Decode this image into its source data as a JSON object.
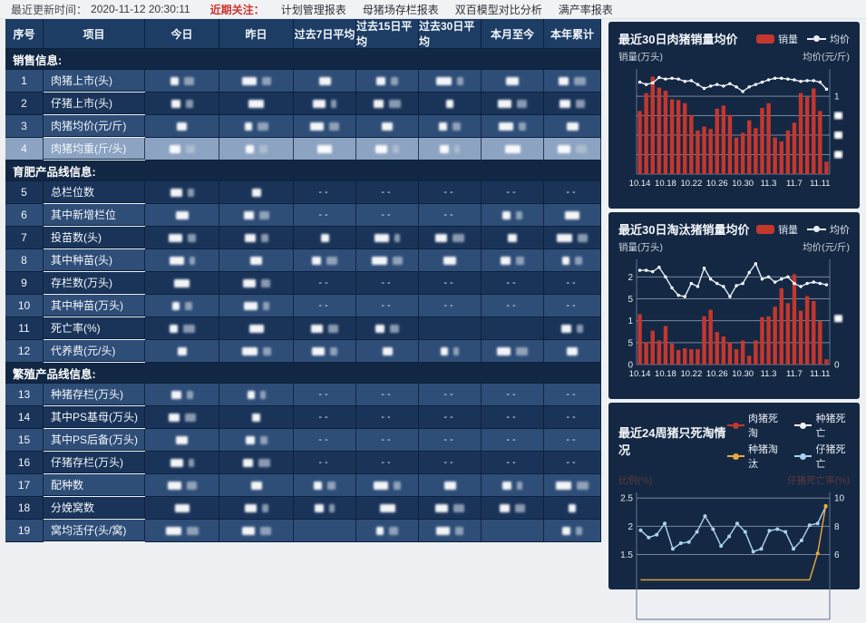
{
  "topbar": {
    "updated_label": "最近更新时间：",
    "updated_value": "2020-11-12 20:30:11",
    "focus_label": "近期关注：",
    "links": [
      "计划管理报表",
      "母猪场存栏报表",
      "双百模型对比分析",
      "满产率报表"
    ]
  },
  "table": {
    "headers": [
      "序号",
      "项目",
      "今日",
      "昨日",
      "过去7日平均",
      "过去15日平均",
      "过去30日平均",
      "本月至今",
      "本年累计"
    ],
    "redacted_note": "data cells blurred in source screenshot",
    "sections": [
      {
        "title": "销售信息:",
        "rows": [
          {
            "no": "1",
            "name": "肉猪上市(头)",
            "cells": [
              "R",
              "R",
              "R",
              "R",
              "R",
              "R",
              "R"
            ]
          },
          {
            "no": "2",
            "name": "仔猪上市(头)",
            "cells": [
              "R",
              "R",
              "R",
              "R",
              "R",
              "R",
              "R"
            ]
          },
          {
            "no": "3",
            "name": "肉猪均价(元/斤)",
            "cells": [
              "R",
              "R",
              "R",
              "R",
              "R",
              "R",
              "R"
            ]
          },
          {
            "no": "4",
            "name": "肉猪均重(斤/头)",
            "selected": true,
            "cells": [
              "R",
              "R",
              "R",
              "R",
              "R",
              "R",
              "R"
            ]
          }
        ]
      },
      {
        "title": "育肥产品线信息:",
        "rows": [
          {
            "no": "5",
            "name": "总栏位数",
            "cells": [
              "R",
              "R",
              "-",
              "-",
              "-",
              "-",
              "-"
            ]
          },
          {
            "no": "6",
            "name": "其中新增栏位",
            "cells": [
              "R",
              "R",
              "-",
              "-",
              "-",
              "R",
              "R"
            ]
          },
          {
            "no": "7",
            "name": "投苗数(头)",
            "cells": [
              "R",
              "R",
              "R",
              "R",
              "R",
              "R",
              "R"
            ]
          },
          {
            "no": "8",
            "name": "其中种苗(头)",
            "cells": [
              "R",
              "R",
              "R",
              "R",
              "R",
              "R",
              "R"
            ]
          },
          {
            "no": "9",
            "name": "存栏数(万头)",
            "cells": [
              "R",
              "R",
              "-",
              "-",
              "-",
              "-",
              "-"
            ]
          },
          {
            "no": "10",
            "name": "其中种苗(万头)",
            "cells": [
              "R",
              "R",
              "-",
              "-",
              "-",
              "-",
              "-"
            ]
          },
          {
            "no": "11",
            "name": "死亡率(%)",
            "cells": [
              "R",
              "R",
              "R",
              "R",
              "",
              "",
              "R"
            ]
          },
          {
            "no": "12",
            "name": "代养费(元/头)",
            "cells": [
              "R",
              "R",
              "R",
              "R",
              "R",
              "R",
              "R"
            ]
          }
        ]
      },
      {
        "title": "繁殖产品线信息:",
        "rows": [
          {
            "no": "13",
            "name": "种猪存栏(万头)",
            "cells": [
              "R",
              "R",
              "-",
              "-",
              "-",
              "-",
              "-"
            ]
          },
          {
            "no": "14",
            "name": "其中PS基母(万头)",
            "cells": [
              "R",
              "R",
              "-",
              "-",
              "-",
              "-",
              "-"
            ]
          },
          {
            "no": "15",
            "name": "其中PS后备(万头)",
            "cells": [
              "R",
              "R",
              "-",
              "-",
              "-",
              "-",
              "-"
            ]
          },
          {
            "no": "16",
            "name": "仔猪存栏(万头)",
            "cells": [
              "R",
              "R",
              "-",
              "-",
              "-",
              "-",
              "-"
            ]
          },
          {
            "no": "17",
            "name": "配种数",
            "cells": [
              "R",
              "R",
              "R",
              "R",
              "R",
              "R",
              "R"
            ]
          },
          {
            "no": "18",
            "name": "分娩窝数",
            "cells": [
              "R",
              "R",
              "R",
              "R",
              "R",
              "R",
              "R"
            ]
          },
          {
            "no": "19",
            "name": "窝均活仔(头/窝)",
            "cells": [
              "R",
              "R",
              "",
              "R",
              "R",
              "",
              "R"
            ]
          }
        ]
      }
    ]
  },
  "chart_data": [
    {
      "type": "bar+line",
      "title": "最近30日肉猪销量均价",
      "legend": [
        {
          "label": "销量",
          "kind": "bar",
          "color": "#c4372e"
        },
        {
          "label": "均价",
          "kind": "line",
          "color": "#e8f1fa"
        }
      ],
      "y_left_label": "销量(万头)",
      "y_right_label": "均价(元/斤)",
      "x_tick_labels": [
        "10.14",
        "10.18",
        "10.22",
        "10.26",
        "10.30",
        "11.3",
        "11.7",
        "11.11"
      ],
      "n_points": 30,
      "ylim": [
        0,
        1.35
      ],
      "grid_values": [
        0.25,
        0.5,
        0.75,
        1.0
      ],
      "left_ticks": [],
      "right_ticks": [
        {
          "v": 1.0,
          "t": "1"
        },
        {
          "v": 0.75,
          "redacted": true
        },
        {
          "v": 0.5,
          "redacted": true
        },
        {
          "v": 0.25,
          "redacted": true
        }
      ],
      "bar_series": {
        "name": "销量",
        "values": [
          0.81,
          1.04,
          1.25,
          1.11,
          1.07,
          0.96,
          0.95,
          0.91,
          0.76,
          0.56,
          0.61,
          0.58,
          0.84,
          0.88,
          0.76,
          0.47,
          0.53,
          0.69,
          0.59,
          0.85,
          0.91,
          0.47,
          0.42,
          0.56,
          0.66,
          1.04,
          0.99,
          1.1,
          0.81,
          0.16
        ],
        "note": "left axis labels not visible; values estimated on 0-1.35 relative scale"
      },
      "line_series": {
        "name": "均价",
        "values": [
          1.18,
          1.15,
          1.17,
          1.24,
          1.22,
          1.23,
          1.22,
          1.19,
          1.2,
          1.15,
          1.1,
          1.13,
          1.15,
          1.13,
          1.16,
          1.12,
          1.06,
          1.12,
          1.15,
          1.18,
          1.21,
          1.23,
          1.23,
          1.22,
          1.21,
          1.19,
          1.2,
          1.2,
          1.18,
          1.09
        ],
        "note": "right axis partially redacted"
      }
    },
    {
      "type": "bar+line",
      "title": "最近30日淘汰猪销量均价",
      "legend": [
        {
          "label": "销量",
          "kind": "bar",
          "color": "#c4372e"
        },
        {
          "label": "均价",
          "kind": "line",
          "color": "#e8f1fa"
        }
      ],
      "y_left_label": "销量(万头)",
      "y_right_label": "均价(元/斤)",
      "x_tick_labels": [
        "10.14",
        "10.18",
        "10.22",
        "10.26",
        "10.30",
        "11.3",
        "11.7",
        "11.11"
      ],
      "n_points": 30,
      "ylim": [
        0,
        2.4
      ],
      "grid_values": [
        0.5,
        1.0,
        1.5,
        2.0
      ],
      "left_ticks": [
        {
          "v": 2.0,
          "t": "2"
        },
        {
          "v": 1.5,
          "t": "5",
          "full": "1.5"
        },
        {
          "v": 1.0,
          "t": "1"
        },
        {
          "v": 0.5,
          "t": "5",
          "full": "0.5"
        },
        {
          "v": 0.0,
          "t": "0"
        }
      ],
      "right_ticks": [
        {
          "v": 1.05,
          "redacted": true
        },
        {
          "v": 0.0,
          "t": "0"
        }
      ],
      "bar_series": {
        "name": "销量",
        "values": [
          1.15,
          0.51,
          0.77,
          0.55,
          0.88,
          0.48,
          0.33,
          0.37,
          0.35,
          0.35,
          1.1,
          1.25,
          0.74,
          0.64,
          0.51,
          0.35,
          0.55,
          0.2,
          0.55,
          1.08,
          1.1,
          1.32,
          1.74,
          1.4,
          2.06,
          1.23,
          1.56,
          1.45,
          0.99,
          0.12
        ]
      },
      "line_series": {
        "name": "均价",
        "values": [
          2.15,
          2.15,
          2.12,
          2.22,
          2.0,
          1.75,
          1.58,
          1.55,
          1.85,
          1.78,
          2.2,
          1.95,
          1.85,
          1.78,
          1.55,
          1.8,
          1.85,
          2.1,
          2.3,
          1.95,
          2.0,
          1.88,
          1.95,
          2.0,
          1.85,
          1.78,
          1.85,
          1.88,
          1.85,
          1.82
        ],
        "note": "right axis labels redacted; plotted on left-axis-equivalent scale"
      }
    },
    {
      "type": "line",
      "title": "最近24周猪只死淘情况",
      "legend": [
        {
          "label": "肉猪死淘",
          "color": "#c0392b"
        },
        {
          "label": "种猪死亡",
          "color": "#f4f8fb"
        },
        {
          "label": "种猪淘汰",
          "color": "#e9a93d"
        },
        {
          "label": "仔猪死亡",
          "color": "#a9d3ee"
        }
      ],
      "y_left_label": "比例(%)",
      "y_right_label": "仔猪死亡率(%)",
      "n_points": 24,
      "ylim_left_visible": [
        1.5,
        2.5
      ],
      "ylim_right_visible": [
        6,
        10
      ],
      "left_ticks": [
        {
          "v": 2.5,
          "t": "2.5"
        },
        {
          "v": 2.0,
          "t": "2"
        },
        {
          "v": 1.5,
          "t": "1.5"
        }
      ],
      "right_ticks": [
        {
          "v": 2.5,
          "t": "10"
        },
        {
          "v": 2.0,
          "t": "8"
        },
        {
          "v": 1.5,
          "t": "6"
        }
      ],
      "series": [
        {
          "name": "仔猪死亡",
          "color": "#a9d3ee",
          "values": [
            1.93,
            1.8,
            1.85,
            2.05,
            1.6,
            1.7,
            1.72,
            1.9,
            2.18,
            1.95,
            1.65,
            1.82,
            2.05,
            1.9,
            1.55,
            1.6,
            1.92,
            1.95,
            1.9,
            1.6,
            1.75,
            2.02,
            2.05,
            2.35
          ]
        },
        {
          "name": "种猪淘汰",
          "color": "#e9a93d",
          "values": [
            1.05,
            1.05,
            1.05,
            1.05,
            1.05,
            1.05,
            1.05,
            1.05,
            1.05,
            1.05,
            1.05,
            1.05,
            1.05,
            1.05,
            1.05,
            1.05,
            1.05,
            1.05,
            1.05,
            1.05,
            1.05,
            1.05,
            1.52,
            2.36
          ],
          "dots_last_only": true,
          "note": "flat near bottom, spikes to ~9.4 on right axis at end"
        },
        {
          "name": "肉猪死淘",
          "color": "#c0392b",
          "values_visible": false,
          "note": "below visible crop of screenshot"
        },
        {
          "name": "种猪死亡",
          "color": "#f4f8fb",
          "values_visible": false,
          "note": "below visible crop of screenshot"
        }
      ]
    }
  ],
  "colors": {
    "bar_red": "#c4372e",
    "line_light": "#e8f1fa",
    "card_bg": "#152843",
    "row_medium": "#2e4d77",
    "row_dark": "#1a3459",
    "row_selected": "#8ca3c2",
    "section_bg": "#112743",
    "header_bg": "#1d3d64",
    "accent_red": "#cf342a",
    "chart3_orange": "#e9a93d",
    "chart3_blue": "#a9d3ee"
  }
}
